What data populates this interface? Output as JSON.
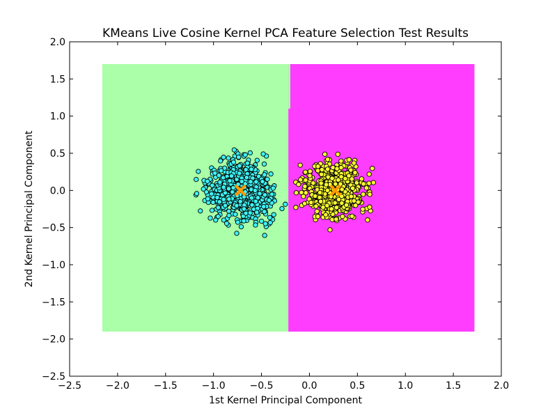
{
  "chart_data": {
    "type": "scatter",
    "title": "KMeans Live Cosine Kernel PCA Feature Selection Test Results",
    "xlabel": "1st Kernel Principal Component",
    "ylabel": "2nd Kernel Principal Component",
    "xlim": [
      -2.5,
      2.0
    ],
    "ylim": [
      -2.5,
      2.0
    ],
    "xticks": [
      -2.5,
      -2.0,
      -1.5,
      -1.0,
      -0.5,
      0.0,
      0.5,
      1.0,
      1.5,
      2.0
    ],
    "yticks": [
      -2.5,
      -2.0,
      -1.5,
      -1.0,
      -0.5,
      0.0,
      0.5,
      1.0,
      1.5,
      2.0
    ],
    "xtick_labels": [
      "−2.5",
      "−2.0",
      "−1.5",
      "−1.0",
      "−0.5",
      "0.0",
      "0.5",
      "1.0",
      "1.5",
      "2.0"
    ],
    "ytick_labels": [
      "−2.5",
      "−2.0",
      "−1.5",
      "−1.0",
      "−0.5",
      "0.0",
      "0.5",
      "1.0",
      "1.5",
      "2.0"
    ],
    "grid": false,
    "decision_regions": [
      {
        "x0": -2.16,
        "x1": -0.22,
        "y0": -1.9,
        "y1": 1.7,
        "color": "#aaffa8"
      },
      {
        "x0": -0.22,
        "x1": 1.72,
        "y0": -1.9,
        "y1": 1.7,
        "color": "#ff3dff"
      },
      {
        "x0": -0.22,
        "x1": -0.2,
        "y0": 1.1,
        "y1": 1.7,
        "color": "#aaffa8"
      }
    ],
    "clusters": [
      {
        "color": "#3ff2f2",
        "center": [
          -0.72,
          0.0
        ],
        "xrange": [
          -1.2,
          -0.21
        ],
        "yrange": [
          -0.85,
          0.72
        ],
        "approx_count": 700
      },
      {
        "color": "#ffff33",
        "center": [
          0.27,
          0.0
        ],
        "xrange": [
          -0.21,
          0.71
        ],
        "yrange": [
          -0.9,
          0.5
        ],
        "approx_count": 600
      }
    ],
    "centroids": [
      {
        "x": -0.72,
        "y": 0.0,
        "marker": "x",
        "color": "#ff9900"
      },
      {
        "x": 0.27,
        "y": 0.0,
        "marker": "x",
        "color": "#ff9900"
      }
    ]
  }
}
